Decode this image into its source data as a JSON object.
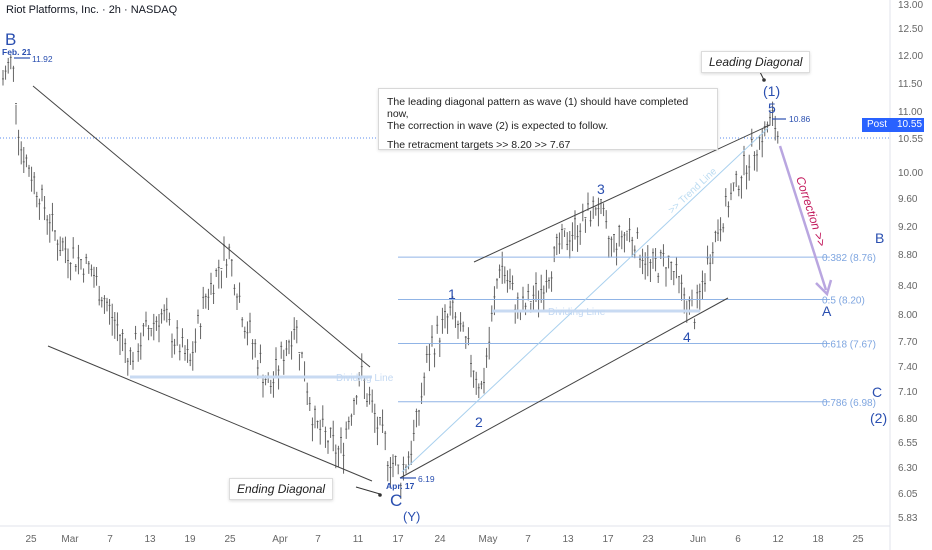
{
  "header": {
    "title": "Riot Platforms, Inc. · 2h · NASDAQ"
  },
  "colors": {
    "wave_label": "#2a4fb0",
    "fib_line": "#90b4e6",
    "fib_text": "#7fa6e0",
    "trend_line": "#333333",
    "trendline_light": "#a9d0ee",
    "correction_arrow": "#b9a6e0",
    "correction_text": "#c2185b",
    "post_badge": "#2962ff",
    "candle": "#555555"
  },
  "annotation": {
    "line1": "The leading diagonal pattern as wave (1) should have completed now,",
    "line2": "The correction in wave (2) is expected to follow.",
    "line3": "The retracment targets >>  8.20  >> 7.67"
  },
  "callouts": {
    "leading_diagonal": "Leading Diagonal",
    "ending_diagonal": "Ending Diagonal",
    "correction": "Correction >>",
    "trend_line": ">> Trend Line",
    "dividing_line_1": "Dividing Line",
    "dividing_line_2": "Dividing Line"
  },
  "price_badge": {
    "label": "Post",
    "value": "10.55",
    "current": "10.55"
  },
  "chart_data": {
    "type": "candlestick",
    "price_axis_ticks": [
      13.0,
      12.5,
      12.0,
      11.5,
      11.0,
      10.55,
      10.0,
      9.6,
      9.2,
      8.8,
      8.4,
      8.0,
      7.7,
      7.4,
      7.1,
      6.8,
      6.55,
      6.3,
      6.05,
      5.83
    ],
    "price_axis_labels": [
      "13.00",
      "12.50",
      "12.00",
      "11.50",
      "11.00",
      "10.55",
      "10.00",
      "9.60",
      "9.20",
      "8.80",
      "8.40",
      "8.00",
      "7.70",
      "7.40",
      "7.10",
      "6.80",
      "6.55",
      "6.30",
      "6.05",
      "5.83"
    ],
    "time_axis_labels": [
      "25",
      "Mar",
      "7",
      "13",
      "19",
      "25",
      "Apr",
      "7",
      "11",
      "17",
      "24",
      "May",
      "7",
      "13",
      "17",
      "23",
      "Jun",
      "6",
      "12",
      "18",
      "25"
    ],
    "current_price": 10.55,
    "price_points": [
      {
        "label": "Feb. 21",
        "value": "11.92"
      },
      {
        "label": "Apr. 17",
        "value": "6.19"
      },
      {
        "label": "",
        "value": "10.86"
      }
    ],
    "fib_levels": [
      {
        "ratio": "0.382",
        "price": 8.76,
        "label": "0.382 (8.76)"
      },
      {
        "ratio": "0.5",
        "price": 8.2,
        "label": "0.5 (8.20)"
      },
      {
        "ratio": "0.618",
        "price": 7.67,
        "label": "0.618 (7.67)"
      },
      {
        "ratio": "0.786",
        "price": 6.98,
        "label": "0.786 (6.98)"
      }
    ],
    "wave_labels": [
      "B",
      "C",
      "(Y)",
      "1",
      "2",
      "3",
      "4",
      "5",
      "(1)",
      "B",
      "A",
      "C",
      "(2)"
    ]
  }
}
